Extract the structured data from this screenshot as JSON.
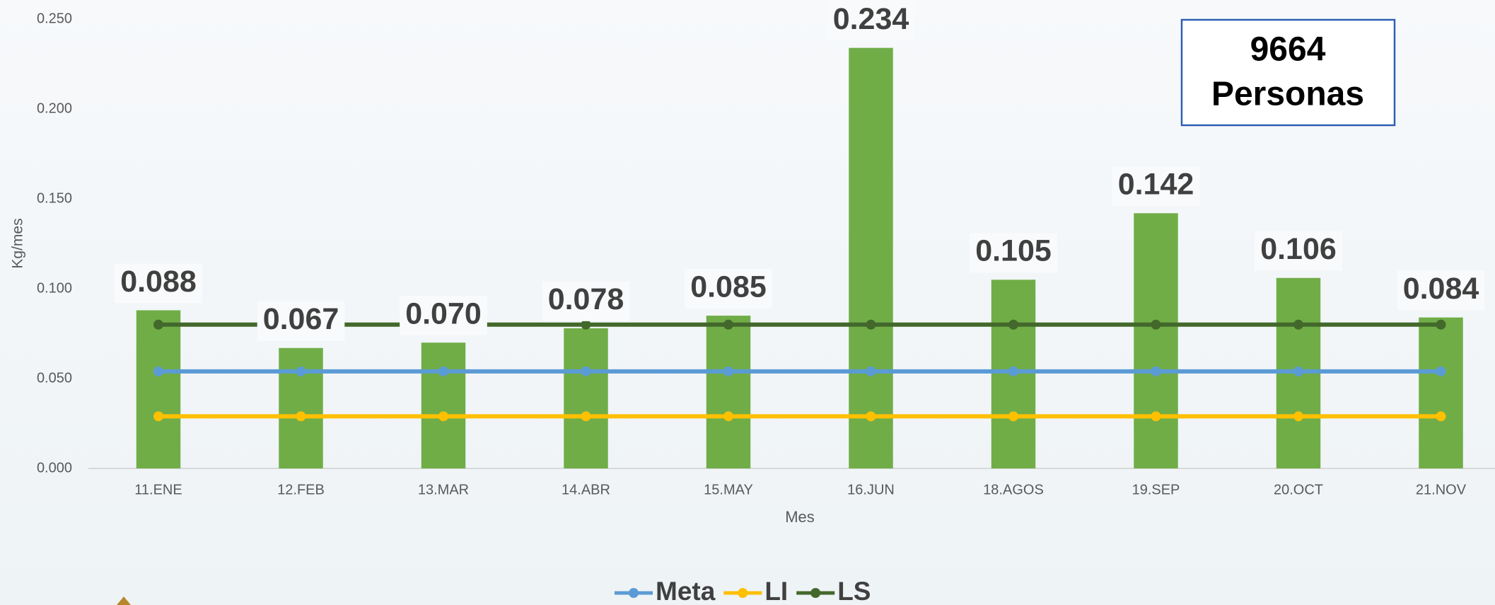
{
  "chart_data": {
    "type": "bar",
    "categories": [
      "11.ENE",
      "12.FEB",
      "13.MAR",
      "14.ABR",
      "15.MAY",
      "16.JUN",
      "18.AGOS",
      "19.SEP",
      "20.OCT",
      "21.NOV"
    ],
    "values": [
      0.088,
      0.067,
      0.07,
      0.078,
      0.085,
      0.234,
      0.105,
      0.142,
      0.106,
      0.084
    ],
    "value_labels": [
      "0.088",
      "0.067",
      "0.070",
      "0.078",
      "0.085",
      "0.234",
      "0.105",
      "0.142",
      "0.106",
      "0.084"
    ],
    "color": "#70ad47",
    "series": [
      {
        "name": "Meta",
        "type": "line",
        "color": "#5b9bd5",
        "values": [
          0.054,
          0.054,
          0.054,
          0.054,
          0.054,
          0.054,
          0.054,
          0.054,
          0.054,
          0.054
        ]
      },
      {
        "name": "LI",
        "type": "line",
        "color": "#ffc000",
        "values": [
          0.029,
          0.029,
          0.029,
          0.029,
          0.029,
          0.029,
          0.029,
          0.029,
          0.029,
          0.029
        ]
      },
      {
        "name": "LS",
        "type": "line",
        "color": "#43682b",
        "values": [
          0.08,
          0.08,
          0.08,
          0.08,
          0.08,
          0.08,
          0.08,
          0.08,
          0.08,
          0.08
        ]
      }
    ],
    "xlabel": "Mes",
    "ylabel": "Kg/mes",
    "ylim": [
      0,
      0.25
    ],
    "yticks": [
      {
        "value": 0,
        "label": "0.000"
      },
      {
        "value": 0.05,
        "label": "0.050"
      },
      {
        "value": 0.1,
        "label": "0.100"
      },
      {
        "value": 0.15,
        "label": "0.150"
      },
      {
        "value": 0.2,
        "label": "0.200"
      },
      {
        "value": 0.25,
        "label": "0.250"
      }
    ],
    "grid": false,
    "legend": "bottom",
    "annotation": [
      "9664",
      "Personas"
    ]
  }
}
